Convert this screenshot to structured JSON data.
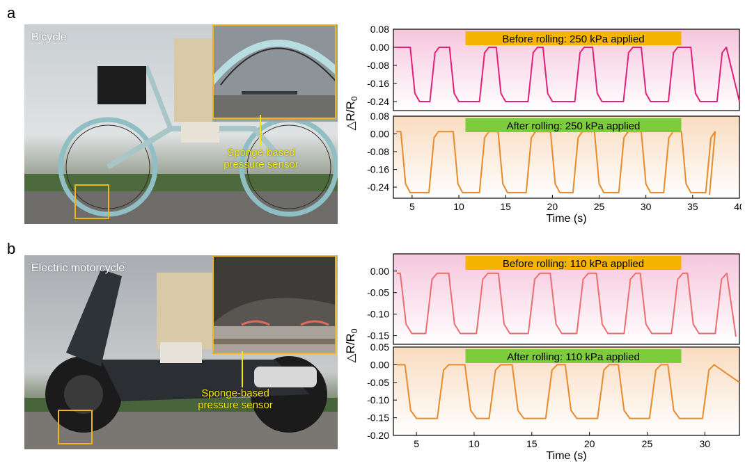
{
  "figure": {
    "panel_a": {
      "letter": "a",
      "photo_label": "Bicycle",
      "sensor_label": "Sponge-based pressure sensor"
    },
    "panel_b": {
      "letter": "b",
      "photo_label": "Electric motorcycle",
      "sensor_label": "Sponge-based pressure sensor"
    }
  },
  "colors": {
    "pink_line": "#e0207a",
    "orange_line": "#e88a2a",
    "coral_line": "#ec6d6f",
    "orange_tag": "#f5b400",
    "green_tag": "#7ccc3c",
    "photo_box": "#f0b41c"
  },
  "chart_data": [
    {
      "type": "line",
      "panel": "a",
      "annotation": "Before rolling: 250 kPa applied",
      "ylabel": "△R/R0",
      "xlim": [
        3,
        40
      ],
      "ylim": [
        -0.28,
        0.08
      ],
      "yticks": [
        "0.08",
        "0.00",
        "-0.08",
        "-0.16",
        "-0.24"
      ],
      "xticks": [],
      "xlabel": "",
      "levels": [
        0.0,
        -0.24
      ],
      "transitions": [
        [
          4.8,
          7.0
        ],
        [
          9.0,
          12.3
        ],
        [
          14.0,
          17.5
        ],
        [
          19.0,
          22.5
        ],
        [
          24.3,
          27.7
        ],
        [
          29.5,
          32.5
        ],
        [
          34.8,
          37.7
        ]
      ],
      "x_end": 40,
      "end_value": -0.24
    },
    {
      "type": "line",
      "panel": "a",
      "annotation": "After rolling: 250 kPa applied",
      "ylabel": "",
      "xlim": [
        3,
        40
      ],
      "ylim": [
        -0.29,
        0.08
      ],
      "yticks": [
        "0.08",
        "0.00",
        "-0.08",
        "-0.16",
        "-0.24"
      ],
      "xticks": [
        "5",
        "10",
        "15",
        "20",
        "25",
        "30",
        "35",
        "40"
      ],
      "xlabel": "Time (s)",
      "levels": [
        0.01,
        -0.265
      ],
      "transitions": [
        [
          3.8,
          6.9
        ],
        [
          9.4,
          12.3
        ],
        [
          14.2,
          17.3
        ],
        [
          19.8,
          22.3
        ],
        [
          24.5,
          27.2
        ],
        [
          29.5,
          32.0
        ],
        [
          33.8,
          36.5
        ]
      ],
      "x_end": 36.8,
      "end_value": -0.275
    },
    {
      "type": "line",
      "panel": "b",
      "annotation": "Before rolling: 110 kPa applied",
      "ylabel": "△R/R0",
      "xlim": [
        3,
        33
      ],
      "ylim": [
        -0.17,
        0.04
      ],
      "yticks": [
        "0.00",
        "-0.05",
        "-0.10",
        "-0.15"
      ],
      "xticks": [],
      "xlabel": "",
      "levels": [
        -0.005,
        -0.145
      ],
      "transitions": [
        [
          3.6,
          5.9
        ],
        [
          7.8,
          10.3
        ],
        [
          12.1,
          14.8
        ],
        [
          16.6,
          19.0
        ],
        [
          20.6,
          23.1
        ],
        [
          24.4,
          27.2
        ],
        [
          28.5,
          31.0
        ]
      ],
      "x_end": 32.7,
      "end_value": -0.152
    },
    {
      "type": "line",
      "panel": "b",
      "annotation": "After rolling: 110 kPa applied",
      "ylabel": "",
      "xlim": [
        3,
        33
      ],
      "ylim": [
        -0.2,
        0.05
      ],
      "yticks": [
        "0.05",
        "0.00",
        "-0.05",
        "-0.10",
        "-0.15",
        "-0.20"
      ],
      "xticks": [
        "5",
        "10",
        "15",
        "20",
        "25",
        "30"
      ],
      "xlabel": "Time (s)",
      "levels": [
        0.0,
        -0.152
      ],
      "transitions": [
        [
          4.0,
          6.9
        ],
        [
          9.2,
          11.4
        ],
        [
          13.3,
          16.3
        ],
        [
          17.9,
          20.8
        ],
        [
          22.5,
          25.3
        ],
        [
          26.8,
          29.9
        ]
      ],
      "x_end": 33.0,
      "end_value": -0.05
    }
  ]
}
